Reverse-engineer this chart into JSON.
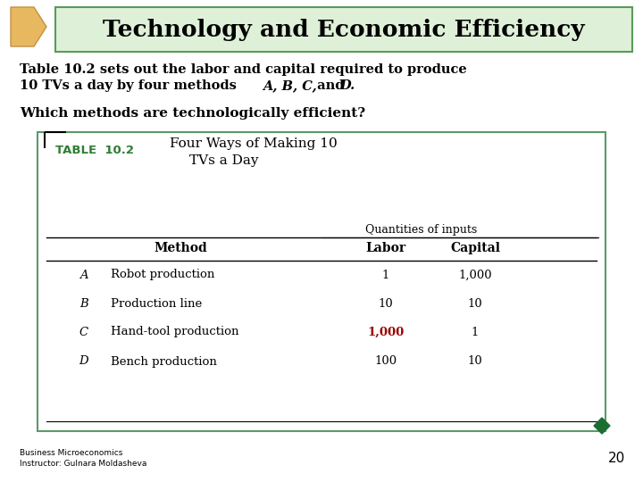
{
  "title": "Technology and Economic Efficiency",
  "title_bg_color": "#dff0d8",
  "title_border_color": "#5a9a5a",
  "title_fontsize": 19,
  "body_line1": "Table 10.2 sets out the labor and capital required to produce",
  "body_line2_pre": "10 TVs a day by four methods ",
  "body_line2_italic": "A, B, C,",
  "body_line2_and": " and ",
  "body_line2_D": "D.",
  "question_text": "Which methods are technologically efficient?",
  "table_label": "TABLE  10.2",
  "table_title_line1": "Four Ways of Making 10",
  "table_title_line2": "TVs a Day",
  "table_label_color": "#2e7d32",
  "col_header_quantities": "Quantities of inputs",
  "col_header_method": "Method",
  "col_header_labor": "Labor",
  "col_header_capital": "Capital",
  "table_rows": [
    {
      "letter": "A",
      "method": "Robot production",
      "labor": "1",
      "capital": "1,000",
      "labor_bold": false
    },
    {
      "letter": "B",
      "method": "Production line",
      "labor": "10",
      "capital": "10",
      "labor_bold": false
    },
    {
      "letter": "C",
      "method": "Hand-tool production",
      "labor": "1,000",
      "capital": "1",
      "labor_bold": true
    },
    {
      "letter": "D",
      "method": "Bench production",
      "labor": "100",
      "capital": "10",
      "labor_bold": false
    }
  ],
  "footer_line1": "Business Microeconomics",
  "footer_line2": "Instructor: Gulnara Moldasheva",
  "page_number": "20",
  "bg_color": "#ffffff",
  "table_border_color": "#5a9a6a",
  "diamond_color": "#1a6e32",
  "arrow_fill": "#e8b860",
  "arrow_edge": "#c49040"
}
